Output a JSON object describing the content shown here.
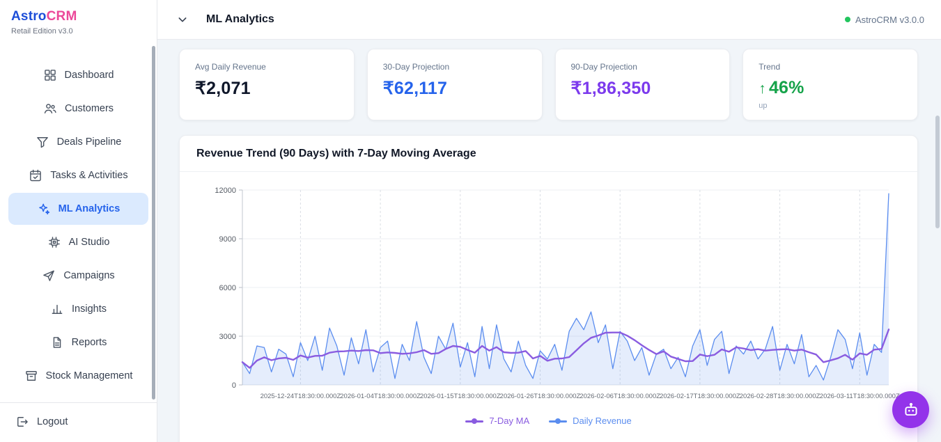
{
  "brand": {
    "name_primary": "Astro",
    "name_secondary": "CRM",
    "subtitle": "Retail Edition v3.0",
    "primary_color": "#1d4ed8",
    "secondary_color": "#ec4899"
  },
  "header": {
    "title": "ML Analytics",
    "version_label": "AstroCRM v3.0.0",
    "status_dot_color": "#22c55e"
  },
  "sidebar": {
    "items": [
      {
        "label": "Dashboard",
        "icon": "dashboard-grid-icon",
        "active": false
      },
      {
        "label": "Customers",
        "icon": "customers-icon",
        "active": false
      },
      {
        "label": "Deals Pipeline",
        "icon": "pipeline-funnel-icon",
        "active": false
      },
      {
        "label": "Tasks & Activities",
        "icon": "tasks-calendar-icon",
        "active": false
      },
      {
        "label": "ML Analytics",
        "icon": "ml-sparkles-icon",
        "active": true
      },
      {
        "label": "AI Studio",
        "icon": "ai-chip-icon",
        "active": false
      },
      {
        "label": "Campaigns",
        "icon": "campaigns-send-icon",
        "active": false
      },
      {
        "label": "Insights",
        "icon": "insights-bar-chart-icon",
        "active": false
      },
      {
        "label": "Reports",
        "icon": "reports-document-icon",
        "active": false
      },
      {
        "label": "Stock Management",
        "icon": "stock-box-icon",
        "active": false
      }
    ],
    "logout_label": "Logout",
    "active_bg": "#dbeafe",
    "active_color": "#2563eb"
  },
  "stats": [
    {
      "label": "Avg Daily Revenue",
      "value": "₹2,071",
      "color": "#0f172a"
    },
    {
      "label": "30-Day Projection",
      "value": "₹62,117",
      "color": "#2563eb"
    },
    {
      "label": "90-Day Projection",
      "value": "₹1,86,350",
      "color": "#7c3aed"
    },
    {
      "label": "Trend",
      "arrow": "↑",
      "value": "46%",
      "sub": "up",
      "color": "#16a34a"
    }
  ],
  "chart_card": {
    "title": "Revenue Trend (90 Days) with 7-Day Moving Average"
  },
  "chart_data": {
    "type": "line",
    "title": "Revenue Trend (90 Days) with 7-Day Moving Average",
    "ylim": [
      0,
      12000
    ],
    "y_ticks": [
      0,
      3000,
      6000,
      9000,
      12000
    ],
    "x_tick_labels": [
      "2025-12-24T18:30:00.000Z",
      "2026-01-04T18:30:00.000Z",
      "2026-01-15T18:30:00.000Z",
      "2026-01-26T18:30:00.000Z",
      "2026-02-06T18:30:00.000Z",
      "2026-02-17T18:30:00.000Z",
      "2026-02-28T18:30:00.000Z",
      "2026-03-11T18:30:00.000Z"
    ],
    "x_tick_indices": [
      8,
      19,
      30,
      41,
      52,
      63,
      74,
      85
    ],
    "grid": true,
    "legend_position": "bottom",
    "series": [
      {
        "name": "7-Day MA",
        "color": "#8a5ce0",
        "derived_from": "trailing 7-day mean of Daily Revenue"
      },
      {
        "name": "Daily Revenue",
        "color": "#5b8def",
        "fill": "rgba(91,141,239,0.16)",
        "values": [
          1400,
          700,
          2400,
          2300,
          800,
          2200,
          1900,
          500,
          2600,
          1500,
          3000,
          900,
          3500,
          2400,
          600,
          2900,
          1300,
          3400,
          800,
          2300,
          2700,
          400,
          2500,
          1500,
          3900,
          1700,
          700,
          3000,
          2200,
          3800,
          1100,
          2600,
          500,
          3600,
          1000,
          3700,
          1600,
          800,
          2700,
          1200,
          400,
          2100,
          1600,
          2500,
          900,
          3300,
          4100,
          3400,
          4500,
          2600,
          3700,
          1000,
          3300,
          2700,
          1500,
          2300,
          600,
          1900,
          2200,
          1000,
          1700,
          500,
          2400,
          3400,
          1200,
          2800,
          3300,
          700,
          2400,
          1900,
          2700,
          1600,
          2200,
          3600,
          900,
          2500,
          1300,
          3100,
          500,
          1200,
          300,
          1700,
          3400,
          2800,
          1000,
          3200,
          600,
          2500,
          2000,
          11800
        ]
      }
    ]
  },
  "fab": {
    "icon": "robot-icon",
    "color": "#9333ea"
  }
}
